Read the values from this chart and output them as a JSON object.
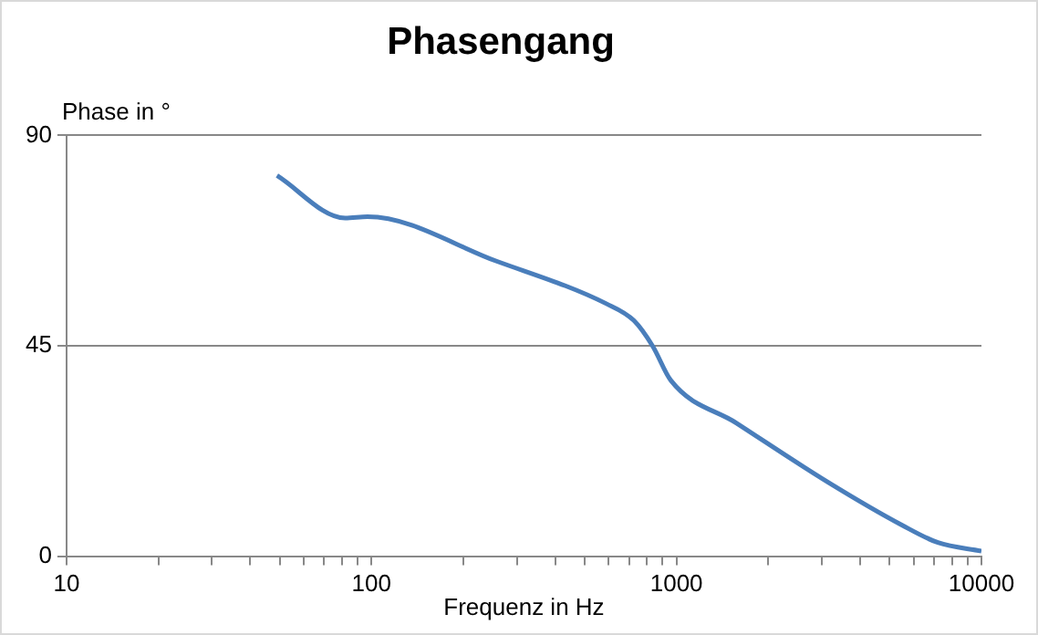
{
  "chart_data": {
    "type": "line",
    "title": "Phasengang",
    "xlabel": "Frequenz in Hz",
    "ylabel": "Phase in °",
    "log": "x",
    "grid": "y",
    "marker": "none",
    "line_style": "solid",
    "xlim": [
      10,
      10000
    ],
    "xticks": [
      10,
      {
        "value": 20,
        "label": null
      },
      {
        "value": 30,
        "label": null
      },
      {
        "value": 40,
        "label": null
      },
      {
        "value": 50,
        "label": null
      },
      {
        "value": 60,
        "label": null
      },
      {
        "value": 70,
        "label": null
      },
      {
        "value": 80,
        "label": null
      },
      {
        "value": 90,
        "label": null
      },
      100,
      {
        "value": 200,
        "label": null
      },
      {
        "value": 300,
        "label": null
      },
      {
        "value": 400,
        "label": null
      },
      {
        "value": 500,
        "label": null
      },
      {
        "value": 600,
        "label": null
      },
      {
        "value": 700,
        "label": null
      },
      {
        "value": 800,
        "label": null
      },
      {
        "value": 900,
        "label": null
      },
      1000,
      {
        "value": 2000,
        "label": null
      },
      {
        "value": 3000,
        "label": null
      },
      {
        "value": 4000,
        "label": null
      },
      {
        "value": 5000,
        "label": null
      },
      {
        "value": 6000,
        "label": null
      },
      {
        "value": 7000,
        "label": null
      },
      {
        "value": 8000,
        "label": null
      },
      {
        "value": 9000,
        "label": null
      },
      10000
    ],
    "ylim": [
      0,
      90
    ],
    "yticks": [
      0,
      45,
      90
    ],
    "series": [
      {
        "color": "#4a7ebb",
        "x": [
          49,
          82,
          97,
          257,
          589,
          725,
          836,
          958,
          1570,
          3160,
          5500,
          7200,
          10000
        ],
        "values": [
          81.4,
          72.3,
          72.6,
          63.1,
          54,
          50.4,
          44.9,
          37.6,
          28.5,
          15.7,
          6.6,
          2.9,
          1.1
        ]
      }
    ]
  }
}
